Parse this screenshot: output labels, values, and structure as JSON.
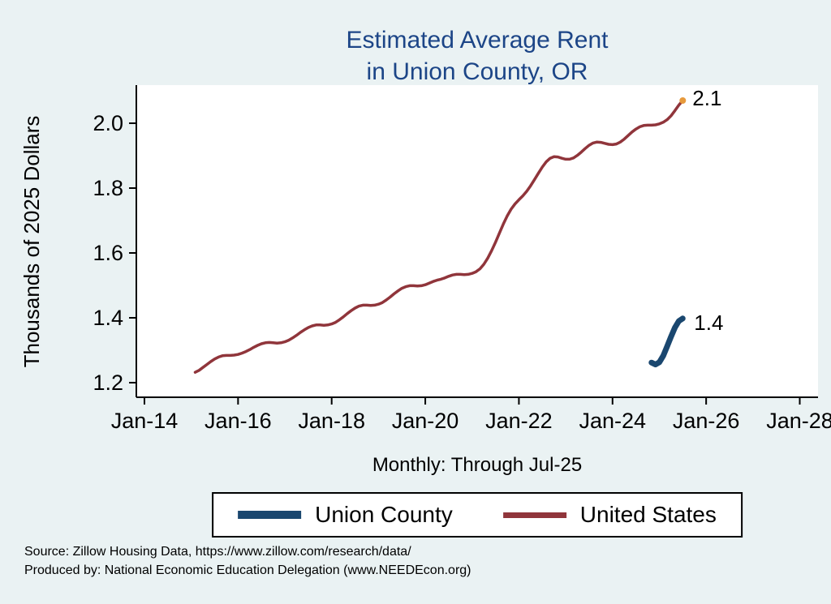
{
  "title_lines": [
    "Estimated Average Rent",
    "in Union County, OR"
  ],
  "y_axis_label": "Thousands of 2025 Dollars",
  "x_axis_note": "Monthly: Through Jul-25",
  "notes": {
    "line1": "Source: Zillow Housing Data, https://www.zillow.com/research/data/",
    "line2": "Produced by: National Economic Education Delegation (www.NEEDEcon.org)"
  },
  "colors": {
    "background": "#EAF2F3",
    "plot_bg": "#FFFFFF",
    "title": "#1C4587",
    "axis": "#000000",
    "end_marker": "#E79A3C"
  },
  "chart_data": {
    "type": "line",
    "title": "Estimated Average Rent in Union County, OR",
    "xlabel": "Monthly: Through Jul-25",
    "ylabel": "Thousands of 2025 Dollars",
    "grid": false,
    "legend_position": "bottom",
    "x_range": [
      2013.827,
      2028.39
    ],
    "y_range": [
      1.155,
      2.1175
    ],
    "y_ticks": [
      {
        "v": 1.2,
        "label": "1.2"
      },
      {
        "v": 1.4,
        "label": "1.4"
      },
      {
        "v": 1.6,
        "label": "1.6"
      },
      {
        "v": 1.8,
        "label": "1.8"
      },
      {
        "v": 2.0,
        "label": "2.0"
      }
    ],
    "x_ticks": [
      {
        "v": 2014,
        "label": "Jan-14"
      },
      {
        "v": 2016,
        "label": "Jan-16"
      },
      {
        "v": 2018,
        "label": "Jan-18"
      },
      {
        "v": 2020,
        "label": "Jan-20"
      },
      {
        "v": 2022,
        "label": "Jan-22"
      },
      {
        "v": 2024,
        "label": "Jan-24"
      },
      {
        "v": 2026,
        "label": "Jan-26"
      },
      {
        "v": 2028,
        "label": "Jan-28"
      }
    ],
    "series": [
      {
        "name": "Union County",
        "color": "#1A476F",
        "line_width": 7,
        "frequency": "monthly",
        "start_year": 2024,
        "start_month": 11,
        "values": [
          1.262,
          1.256,
          1.263,
          1.283,
          1.312,
          1.342,
          1.37,
          1.39,
          1.398
        ],
        "end_label": {
          "text": "1.4",
          "dx": 14,
          "dy": 14
        }
      },
      {
        "name": "United States",
        "color": "#90353B",
        "line_width": 3.5,
        "frequency": "monthly",
        "start_year": 2015,
        "start_month": 2,
        "values": [
          1.232,
          1.238,
          1.247,
          1.256,
          1.265,
          1.273,
          1.279,
          1.283,
          1.284,
          1.284,
          1.285,
          1.287,
          1.291,
          1.296,
          1.302,
          1.309,
          1.315,
          1.32,
          1.323,
          1.324,
          1.323,
          1.322,
          1.323,
          1.326,
          1.331,
          1.338,
          1.346,
          1.355,
          1.363,
          1.37,
          1.375,
          1.378,
          1.378,
          1.377,
          1.378,
          1.381,
          1.386,
          1.394,
          1.403,
          1.413,
          1.422,
          1.43,
          1.436,
          1.439,
          1.439,
          1.438,
          1.439,
          1.442,
          1.447,
          1.455,
          1.464,
          1.474,
          1.483,
          1.491,
          1.496,
          1.499,
          1.499,
          1.498,
          1.499,
          1.502,
          1.507,
          1.512,
          1.516,
          1.519,
          1.523,
          1.528,
          1.532,
          1.534,
          1.534,
          1.533,
          1.534,
          1.537,
          1.542,
          1.551,
          1.565,
          1.584,
          1.607,
          1.633,
          1.661,
          1.689,
          1.714,
          1.735,
          1.751,
          1.764,
          1.776,
          1.79,
          1.807,
          1.826,
          1.846,
          1.865,
          1.881,
          1.892,
          1.897,
          1.896,
          1.892,
          1.889,
          1.889,
          1.893,
          1.901,
          1.911,
          1.922,
          1.932,
          1.939,
          1.942,
          1.941,
          1.938,
          1.935,
          1.934,
          1.936,
          1.942,
          1.951,
          1.962,
          1.973,
          1.982,
          1.989,
          1.993,
          1.994,
          1.994,
          1.995,
          1.998,
          2.003,
          2.011,
          2.023,
          2.039,
          2.056,
          2.07
        ],
        "end_label": {
          "text": "2.1",
          "dx": 12,
          "dy": 6
        },
        "end_marker_color": "#E79A3C"
      }
    ]
  }
}
